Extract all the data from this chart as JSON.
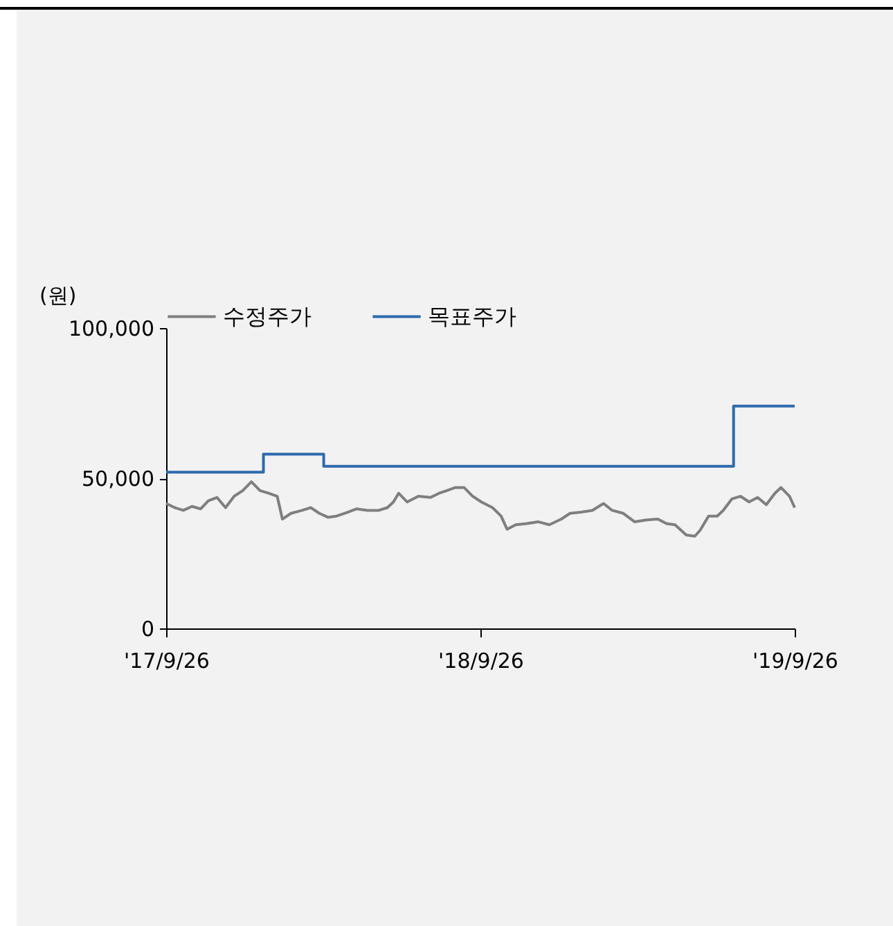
{
  "chart_data": {
    "type": "line",
    "ylabel": "(원)",
    "legend": "top",
    "grid": false,
    "xlim": [
      "2017-09-26",
      "2019-09-26"
    ],
    "xticks": [
      {
        "value": "2017-09-26",
        "label": "'17/9/26"
      },
      {
        "value": "2018-09-26",
        "label": "'18/9/26"
      },
      {
        "value": "2019-09-26",
        "label": "'19/9/26"
      }
    ],
    "ylim": [
      0,
      100000
    ],
    "yticks": [
      {
        "value": 0,
        "label": "0"
      },
      {
        "value": 50000,
        "label": "50,000"
      },
      {
        "value": 100000,
        "label": "100,000"
      }
    ],
    "series": [
      {
        "name": "수정주가",
        "color": "#7f7f7f",
        "x": [
          "2017-09-26",
          "2017-10-06",
          "2017-10-16",
          "2017-10-26",
          "2017-11-05",
          "2017-11-14",
          "2017-11-24",
          "2017-12-04",
          "2017-12-14",
          "2017-12-24",
          "2018-01-03",
          "2018-01-13",
          "2018-01-23",
          "2018-02-02",
          "2018-02-08",
          "2018-02-18",
          "2018-03-03",
          "2018-03-13",
          "2018-03-23",
          "2018-04-02",
          "2018-04-12",
          "2018-04-25",
          "2018-05-05",
          "2018-05-18",
          "2018-05-31",
          "2018-06-10",
          "2018-06-17",
          "2018-06-23",
          "2018-07-03",
          "2018-07-16",
          "2018-07-30",
          "2018-08-09",
          "2018-08-18",
          "2018-08-28",
          "2018-09-07",
          "2018-09-17",
          "2018-09-27",
          "2018-10-10",
          "2018-10-20",
          "2018-10-27",
          "2018-11-06",
          "2018-11-19",
          "2018-12-02",
          "2018-12-15",
          "2018-12-29",
          "2019-01-08",
          "2019-01-21",
          "2019-02-03",
          "2019-02-16",
          "2019-02-26",
          "2019-03-11",
          "2019-03-24",
          "2019-04-07",
          "2019-04-20",
          "2019-04-30",
          "2019-05-10",
          "2019-05-23",
          "2019-06-02",
          "2019-06-08",
          "2019-06-18",
          "2019-06-28",
          "2019-07-05",
          "2019-07-15",
          "2019-07-25",
          "2019-08-04",
          "2019-08-14",
          "2019-08-24",
          "2019-09-03",
          "2019-09-10",
          "2019-09-20",
          "2019-09-26"
        ],
        "values": [
          41600,
          40200,
          39300,
          40600,
          39800,
          42500,
          43600,
          40200,
          44000,
          45900,
          48800,
          45900,
          45000,
          44000,
          36400,
          38300,
          39300,
          40200,
          38300,
          37000,
          37400,
          38700,
          39800,
          39300,
          39300,
          40200,
          42100,
          45000,
          42100,
          44000,
          43600,
          45000,
          45900,
          46900,
          46900,
          44000,
          42100,
          40200,
          37400,
          33000,
          34500,
          34900,
          35500,
          34500,
          36400,
          38300,
          38700,
          39300,
          41600,
          39300,
          38300,
          35500,
          36100,
          36400,
          34900,
          34500,
          31100,
          30700,
          32600,
          37400,
          37400,
          39300,
          43100,
          44000,
          42100,
          43600,
          41200,
          45000,
          46900,
          44000,
          40200
        ]
      },
      {
        "name": "목표주가",
        "color": "#2e6aad",
        "x": [
          "2017-09-26",
          "2018-01-17",
          "2018-01-17",
          "2018-03-28",
          "2018-03-28",
          "2019-07-17",
          "2019-07-17",
          "2019-09-26"
        ],
        "values": [
          52000,
          52000,
          58000,
          58000,
          54000,
          54000,
          74000,
          74000
        ]
      }
    ]
  }
}
